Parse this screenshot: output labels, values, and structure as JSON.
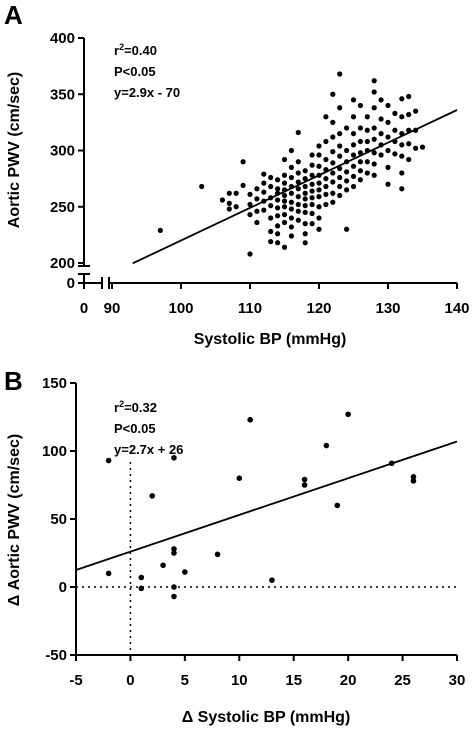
{
  "chart_data": [
    {
      "panel_label": "A",
      "type": "scatter",
      "xlabel": "Systolic BP (mmHg)",
      "ylabel": "Aortic PWV (cm/sec)",
      "xlim": [
        90,
        140
      ],
      "ylim": [
        200,
        400
      ],
      "x_ticks": [
        0,
        90,
        100,
        110,
        120,
        130,
        140
      ],
      "y_ticks": [
        0,
        200,
        250,
        300,
        350,
        400
      ],
      "x_axis_break": true,
      "y_axis_break": true,
      "annotations": {
        "r2": "=0.40",
        "p": "P<0.05",
        "eq": "y=2.9x - 70"
      },
      "fit_line": {
        "slope": 2.9,
        "intercept": -70,
        "x_range": [
          93,
          140
        ]
      },
      "points": [
        [
          97,
          229
        ],
        [
          103,
          268
        ],
        [
          106,
          256
        ],
        [
          107,
          262
        ],
        [
          107,
          253
        ],
        [
          107,
          248
        ],
        [
          108,
          262
        ],
        [
          108,
          250
        ],
        [
          109,
          290
        ],
        [
          109,
          269
        ],
        [
          110,
          261
        ],
        [
          110,
          252
        ],
        [
          110,
          243
        ],
        [
          110,
          208
        ],
        [
          111,
          266
        ],
        [
          111,
          257
        ],
        [
          111,
          246
        ],
        [
          111,
          236
        ],
        [
          112,
          279
        ],
        [
          112,
          271
        ],
        [
          112,
          263
        ],
        [
          112,
          255
        ],
        [
          112,
          247
        ],
        [
          113,
          276
        ],
        [
          113,
          268
        ],
        [
          113,
          258
        ],
        [
          113,
          251
        ],
        [
          113,
          240
        ],
        [
          113,
          228
        ],
        [
          113,
          219
        ],
        [
          114,
          274
        ],
        [
          114,
          266
        ],
        [
          114,
          262
        ],
        [
          114,
          256
        ],
        [
          114,
          249
        ],
        [
          114,
          242
        ],
        [
          114,
          233
        ],
        [
          114,
          226
        ],
        [
          114,
          218
        ],
        [
          115,
          292
        ],
        [
          115,
          278
        ],
        [
          115,
          271
        ],
        [
          115,
          265
        ],
        [
          115,
          260
        ],
        [
          115,
          255
        ],
        [
          115,
          250
        ],
        [
          115,
          243
        ],
        [
          115,
          236
        ],
        [
          115,
          214
        ],
        [
          116,
          300
        ],
        [
          116,
          285
        ],
        [
          116,
          276
        ],
        [
          116,
          268
        ],
        [
          116,
          262
        ],
        [
          116,
          254
        ],
        [
          116,
          248
        ],
        [
          116,
          240
        ],
        [
          116,
          232
        ],
        [
          116,
          224
        ],
        [
          117,
          316
        ],
        [
          117,
          290
        ],
        [
          117,
          280
        ],
        [
          117,
          272
        ],
        [
          117,
          266
        ],
        [
          117,
          259
        ],
        [
          117,
          252
        ],
        [
          117,
          246
        ],
        [
          117,
          238
        ],
        [
          118,
          282
        ],
        [
          118,
          275
        ],
        [
          118,
          268
        ],
        [
          118,
          262
        ],
        [
          118,
          257
        ],
        [
          118,
          251
        ],
        [
          118,
          245
        ],
        [
          118,
          235
        ],
        [
          118,
          226
        ],
        [
          118,
          218
        ],
        [
          119,
          296
        ],
        [
          119,
          287
        ],
        [
          119,
          278
        ],
        [
          119,
          270
        ],
        [
          119,
          264
        ],
        [
          119,
          258
        ],
        [
          119,
          252
        ],
        [
          119,
          244
        ],
        [
          119,
          235
        ],
        [
          120,
          304
        ],
        [
          120,
          296
        ],
        [
          120,
          286
        ],
        [
          120,
          278
        ],
        [
          120,
          271
        ],
        [
          120,
          265
        ],
        [
          120,
          259
        ],
        [
          120,
          250
        ],
        [
          120,
          240
        ],
        [
          120,
          230
        ],
        [
          121,
          330
        ],
        [
          121,
          308
        ],
        [
          121,
          292
        ],
        [
          121,
          283
        ],
        [
          121,
          275
        ],
        [
          121,
          268
        ],
        [
          121,
          261
        ],
        [
          121,
          252
        ],
        [
          122,
          350
        ],
        [
          122,
          325
        ],
        [
          122,
          312
        ],
        [
          122,
          299
        ],
        [
          122,
          289
        ],
        [
          122,
          280
        ],
        [
          122,
          272
        ],
        [
          122,
          262
        ],
        [
          122,
          254
        ],
        [
          123,
          368
        ],
        [
          123,
          338
        ],
        [
          123,
          315
        ],
        [
          123,
          304
        ],
        [
          123,
          295
        ],
        [
          123,
          284
        ],
        [
          123,
          276
        ],
        [
          123,
          268
        ],
        [
          123,
          260
        ],
        [
          124,
          320
        ],
        [
          124,
          300
        ],
        [
          124,
          290
        ],
        [
          124,
          281
        ],
        [
          124,
          273
        ],
        [
          124,
          265
        ],
        [
          124,
          230
        ],
        [
          125,
          345
        ],
        [
          125,
          330
        ],
        [
          125,
          315
        ],
        [
          125,
          305
        ],
        [
          125,
          296
        ],
        [
          125,
          286
        ],
        [
          125,
          277
        ],
        [
          125,
          268
        ],
        [
          126,
          340
        ],
        [
          126,
          320
        ],
        [
          126,
          308
        ],
        [
          126,
          298
        ],
        [
          126,
          290
        ],
        [
          126,
          282
        ],
        [
          126,
          274
        ],
        [
          127,
          330
        ],
        [
          127,
          318
        ],
        [
          127,
          308
        ],
        [
          127,
          300
        ],
        [
          127,
          290
        ],
        [
          127,
          280
        ],
        [
          128,
          362
        ],
        [
          128,
          352
        ],
        [
          128,
          338
        ],
        [
          128,
          320
        ],
        [
          128,
          310
        ],
        [
          128,
          298
        ],
        [
          128,
          288
        ],
        [
          128,
          278
        ],
        [
          129,
          345
        ],
        [
          129,
          328
        ],
        [
          129,
          315
        ],
        [
          129,
          305
        ],
        [
          129,
          296
        ],
        [
          130,
          340
        ],
        [
          130,
          325
        ],
        [
          130,
          312
        ],
        [
          130,
          300
        ],
        [
          130,
          285
        ],
        [
          130,
          270
        ],
        [
          131,
          333
        ],
        [
          131,
          318
        ],
        [
          131,
          308
        ],
        [
          131,
          297
        ],
        [
          132,
          346
        ],
        [
          132,
          330
        ],
        [
          132,
          315
        ],
        [
          132,
          305
        ],
        [
          132,
          295
        ],
        [
          132,
          280
        ],
        [
          133,
          348
        ],
        [
          133,
          332
        ],
        [
          133,
          318
        ],
        [
          133,
          306
        ],
        [
          133,
          292
        ],
        [
          134,
          335
        ],
        [
          134,
          318
        ],
        [
          134,
          302
        ],
        [
          135,
          303
        ],
        [
          132,
          266
        ]
      ]
    },
    {
      "panel_label": "B",
      "type": "scatter",
      "xlabel": "Δ Systolic BP (mmHg)",
      "ylabel": "Δ Aortic PWV (cm/sec)",
      "xlim": [
        -5,
        30
      ],
      "ylim": [
        -50,
        150
      ],
      "x_ticks": [
        -5,
        0,
        5,
        10,
        15,
        20,
        25,
        30
      ],
      "y_ticks": [
        -50,
        0,
        50,
        100,
        150
      ],
      "reference_lines": {
        "x": 0,
        "y": 0,
        "style": "dotted"
      },
      "annotations": {
        "r2": "=0.32",
        "p": "P<0.05",
        "eq": "y=2.7x + 26"
      },
      "fit_line": {
        "slope": 2.7,
        "intercept": 26,
        "x_range": [
          -5,
          30
        ]
      },
      "points": [
        [
          -2,
          93
        ],
        [
          -2,
          10
        ],
        [
          1,
          7
        ],
        [
          1,
          -1
        ],
        [
          2,
          67
        ],
        [
          3,
          16
        ],
        [
          4,
          95
        ],
        [
          4,
          28
        ],
        [
          4,
          25
        ],
        [
          4,
          0
        ],
        [
          4,
          -7
        ],
        [
          5,
          11
        ],
        [
          8,
          24
        ],
        [
          10,
          80
        ],
        [
          11,
          123
        ],
        [
          13,
          5
        ],
        [
          16,
          79
        ],
        [
          16,
          75
        ],
        [
          18,
          104
        ],
        [
          19,
          60
        ],
        [
          20,
          127
        ],
        [
          24,
          91
        ],
        [
          26,
          81
        ],
        [
          26,
          78
        ]
      ]
    }
  ]
}
